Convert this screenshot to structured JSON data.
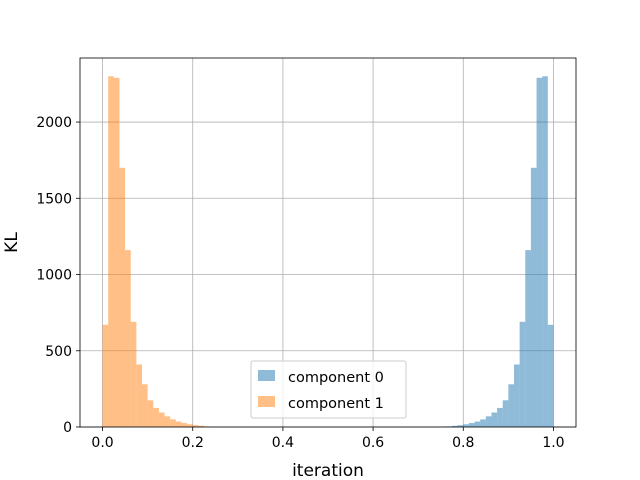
{
  "chart_data": {
    "type": "bar",
    "title": "",
    "xlabel": "iteration",
    "ylabel": "KL",
    "xlim": [
      -0.05,
      1.05
    ],
    "ylim": [
      0,
      2420
    ],
    "xticks": [
      0.0,
      0.2,
      0.4,
      0.6,
      0.8,
      1.0
    ],
    "xtick_labels": [
      "0.0",
      "0.2",
      "0.4",
      "0.6",
      "0.8",
      "1.0"
    ],
    "yticks": [
      0,
      500,
      1000,
      1500,
      2000
    ],
    "ytick_labels": [
      "0",
      "500",
      "1000",
      "1500",
      "2000"
    ],
    "grid": true,
    "legend_position": "lower-center",
    "bin_width": 0.0125,
    "series": [
      {
        "name": "component 0",
        "color": "#1f77b4",
        "opacity": 0.5,
        "bins": [
          [
            0.75,
            2
          ],
          [
            0.7625,
            4
          ],
          [
            0.775,
            8
          ],
          [
            0.7875,
            12
          ],
          [
            0.8,
            18
          ],
          [
            0.8125,
            26
          ],
          [
            0.825,
            36
          ],
          [
            0.8375,
            50
          ],
          [
            0.85,
            70
          ],
          [
            0.8625,
            95
          ],
          [
            0.875,
            125
          ],
          [
            0.8875,
            175
          ],
          [
            0.9,
            280
          ],
          [
            0.9125,
            410
          ],
          [
            0.925,
            690
          ],
          [
            0.9375,
            1160
          ],
          [
            0.95,
            1700
          ],
          [
            0.9625,
            2290
          ],
          [
            0.975,
            2300
          ],
          [
            0.9875,
            670
          ]
        ]
      },
      {
        "name": "component 1",
        "color": "#ff7f0e",
        "opacity": 0.5,
        "bins": [
          [
            0.0,
            670
          ],
          [
            0.0125,
            2300
          ],
          [
            0.025,
            2290
          ],
          [
            0.0375,
            1700
          ],
          [
            0.05,
            1160
          ],
          [
            0.0625,
            690
          ],
          [
            0.075,
            410
          ],
          [
            0.0875,
            280
          ],
          [
            0.1,
            175
          ],
          [
            0.1125,
            125
          ],
          [
            0.125,
            95
          ],
          [
            0.1375,
            70
          ],
          [
            0.15,
            50
          ],
          [
            0.1625,
            36
          ],
          [
            0.175,
            26
          ],
          [
            0.1875,
            18
          ],
          [
            0.2,
            12
          ],
          [
            0.2125,
            8
          ],
          [
            0.225,
            4
          ],
          [
            0.2375,
            2
          ]
        ]
      }
    ]
  }
}
